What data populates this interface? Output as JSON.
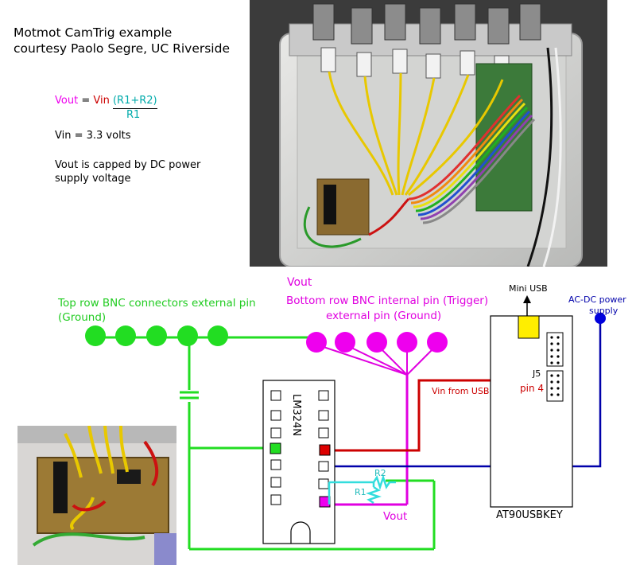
{
  "header": {
    "title_line1": "Motmot CamTrig example",
    "title_line2": "courtesy Paolo Segre, UC Riverside"
  },
  "formula": {
    "vout": "Vout",
    "equals": "=",
    "vin": "Vin",
    "numerator": "(R1+R2)",
    "denominator": "R1",
    "vin_value": "Vin = 3.3 volts",
    "cap_note_line1": "Vout is capped by DC power",
    "cap_note_line2": "supply voltage"
  },
  "labels": {
    "top_row_line1": "Top row BNC connectors external pin",
    "top_row_line2": "(Ground)",
    "vout_top": "Vout",
    "bottom_row_line1": "Bottom row BNC internal pin (Trigger)",
    "bottom_row_line2": "external pin (Ground)",
    "mini_usb": "Mini USB",
    "acdc_line1": "AC-DC power",
    "acdc_line2": "supply",
    "j5": "J5",
    "pin4": "pin 4",
    "vin_from_usb": "Vin from USB",
    "chip": "LM324N",
    "r2": "R2",
    "r1": "R1",
    "vout_bottom": "Vout",
    "board": "AT90USBKEY"
  },
  "colors": {
    "ground": "#22dd22",
    "trigger": "#ee00ee",
    "vin": "#cc0000",
    "power": "#0000aa",
    "resistor": "#33dddd",
    "usb": "#ffee00"
  },
  "photos": {
    "main": "circuit-box-photo",
    "inset": "protoboard-photo"
  }
}
